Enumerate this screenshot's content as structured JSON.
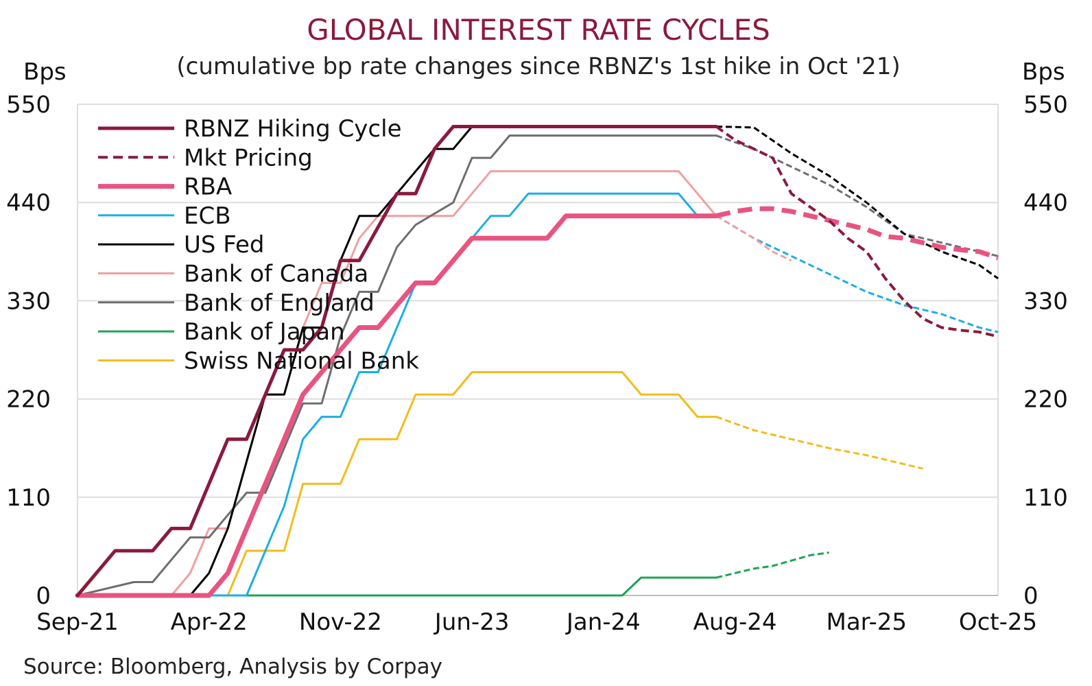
{
  "chart_data": {
    "type": "line",
    "title": "GLOBAL INTEREST RATE CYCLES",
    "subtitle": "(cumulative bp rate changes since RBNZ's 1st hike in Oct '21)",
    "ylabel_left": "Bps",
    "ylabel_right": "Bps",
    "source": "Source: Bloomberg, Analysis by Corpay",
    "ylim": [
      0,
      550
    ],
    "y_ticks": [
      "0",
      "110",
      "220",
      "330",
      "440",
      "550"
    ],
    "x_ticks": [
      "Sep-21",
      "Apr-22",
      "Nov-22",
      "Jun-23",
      "Jan-24",
      "Aug-24",
      "Mar-25",
      "Oct-25"
    ],
    "x_range": [
      "2021-09",
      "2025-10"
    ],
    "grid": "horizontal",
    "legend_position": "top-left",
    "series": [
      {
        "name": "RBNZ Hiking Cycle",
        "color": "#8b1a3d",
        "style": "solid",
        "width": 5,
        "points": [
          [
            "2021-09",
            0
          ],
          [
            "2021-10",
            25
          ],
          [
            "2021-11",
            50
          ],
          [
            "2022-01",
            50
          ],
          [
            "2022-02",
            75
          ],
          [
            "2022-03",
            75
          ],
          [
            "2022-04",
            125
          ],
          [
            "2022-05",
            175
          ],
          [
            "2022-06",
            175
          ],
          [
            "2022-07",
            225
          ],
          [
            "2022-08",
            275
          ],
          [
            "2022-09",
            275
          ],
          [
            "2022-10",
            300
          ],
          [
            "2022-11",
            375
          ],
          [
            "2022-12",
            375
          ],
          [
            "2023-02",
            450
          ],
          [
            "2023-03",
            450
          ],
          [
            "2023-04",
            500
          ],
          [
            "2023-05",
            525
          ],
          [
            "2024-07",
            525
          ]
        ]
      },
      {
        "name": "Mkt Pricing",
        "color": "#8b1a3d",
        "style": "dashed",
        "width": 4,
        "points": [
          [
            "2024-07",
            525
          ],
          [
            "2024-08",
            510
          ],
          [
            "2024-09",
            500
          ],
          [
            "2024-10",
            490
          ],
          [
            "2024-11",
            450
          ],
          [
            "2024-12",
            435
          ],
          [
            "2025-01",
            420
          ],
          [
            "2025-02",
            400
          ],
          [
            "2025-03",
            385
          ],
          [
            "2025-04",
            355
          ],
          [
            "2025-05",
            330
          ],
          [
            "2025-06",
            310
          ],
          [
            "2025-07",
            300
          ],
          [
            "2025-08",
            297
          ],
          [
            "2025-09",
            295
          ],
          [
            "2025-10",
            290
          ]
        ]
      },
      {
        "name": "RBA",
        "color": "#e85480",
        "style": "solid",
        "width": 7,
        "points": [
          [
            "2021-09",
            0
          ],
          [
            "2022-04",
            0
          ],
          [
            "2022-05",
            25
          ],
          [
            "2022-06",
            75
          ],
          [
            "2022-07",
            125
          ],
          [
            "2022-08",
            175
          ],
          [
            "2022-09",
            225
          ],
          [
            "2022-10",
            250
          ],
          [
            "2022-11",
            275
          ],
          [
            "2022-12",
            300
          ],
          [
            "2023-01",
            300
          ],
          [
            "2023-02",
            325
          ],
          [
            "2023-03",
            350
          ],
          [
            "2023-04",
            350
          ],
          [
            "2023-05",
            375
          ],
          [
            "2023-06",
            400
          ],
          [
            "2023-07",
            400
          ],
          [
            "2023-08",
            400
          ],
          [
            "2023-09",
            400
          ],
          [
            "2023-10",
            400
          ],
          [
            "2023-11",
            425
          ],
          [
            "2024-07",
            425
          ]
        ]
      },
      {
        "name": "RBA (pricing)",
        "color": "#e85480",
        "style": "dashed",
        "width": 7,
        "legend": false,
        "points": [
          [
            "2024-07",
            425
          ],
          [
            "2024-08",
            430
          ],
          [
            "2024-09",
            433
          ],
          [
            "2024-10",
            433
          ],
          [
            "2024-11",
            430
          ],
          [
            "2024-12",
            425
          ],
          [
            "2025-01",
            420
          ],
          [
            "2025-02",
            415
          ],
          [
            "2025-03",
            410
          ],
          [
            "2025-04",
            402
          ],
          [
            "2025-05",
            400
          ],
          [
            "2025-06",
            395
          ],
          [
            "2025-07",
            390
          ],
          [
            "2025-08",
            387
          ],
          [
            "2025-09",
            385
          ],
          [
            "2025-10",
            378
          ]
        ]
      },
      {
        "name": "ECB",
        "color": "#1caee4",
        "style": "solid",
        "width": 3,
        "points": [
          [
            "2021-09",
            0
          ],
          [
            "2022-06",
            0
          ],
          [
            "2022-07",
            50
          ],
          [
            "2022-08",
            100
          ],
          [
            "2022-09",
            175
          ],
          [
            "2022-10",
            200
          ],
          [
            "2022-11",
            200
          ],
          [
            "2022-12",
            250
          ],
          [
            "2023-01",
            250
          ],
          [
            "2023-02",
            300
          ],
          [
            "2023-03",
            350
          ],
          [
            "2023-04",
            350
          ],
          [
            "2023-05",
            375
          ],
          [
            "2023-06",
            400
          ],
          [
            "2023-07",
            425
          ],
          [
            "2023-08",
            425
          ],
          [
            "2023-09",
            450
          ],
          [
            "2024-05",
            450
          ],
          [
            "2024-06",
            425
          ],
          [
            "2024-07",
            425
          ]
        ]
      },
      {
        "name": "ECB (pricing)",
        "color": "#1caee4",
        "style": "dashed",
        "width": 3,
        "legend": false,
        "points": [
          [
            "2024-07",
            425
          ],
          [
            "2024-09",
            400
          ],
          [
            "2024-11",
            380
          ],
          [
            "2025-01",
            360
          ],
          [
            "2025-03",
            340
          ],
          [
            "2025-05",
            325
          ],
          [
            "2025-07",
            315
          ],
          [
            "2025-09",
            300
          ],
          [
            "2025-10",
            295
          ]
        ]
      },
      {
        "name": "US Fed",
        "color": "#000000",
        "style": "solid",
        "width": 3,
        "points": [
          [
            "2021-09",
            0
          ],
          [
            "2022-03",
            0
          ],
          [
            "2022-04",
            25
          ],
          [
            "2022-05",
            75
          ],
          [
            "2022-06",
            150
          ],
          [
            "2022-07",
            225
          ],
          [
            "2022-08",
            225
          ],
          [
            "2022-09",
            300
          ],
          [
            "2022-10",
            300
          ],
          [
            "2022-11",
            375
          ],
          [
            "2022-12",
            425
          ],
          [
            "2023-01",
            425
          ],
          [
            "2023-02",
            450
          ],
          [
            "2023-03",
            475
          ],
          [
            "2023-04",
            500
          ],
          [
            "2023-05",
            500
          ],
          [
            "2023-06",
            525
          ],
          [
            "2024-07",
            525
          ]
        ]
      },
      {
        "name": "US Fed (pricing)",
        "color": "#000000",
        "style": "dashed",
        "width": 3,
        "legend": false,
        "points": [
          [
            "2024-07",
            525
          ],
          [
            "2024-09",
            524
          ],
          [
            "2024-11",
            495
          ],
          [
            "2025-01",
            470
          ],
          [
            "2025-03",
            440
          ],
          [
            "2025-05",
            405
          ],
          [
            "2025-07",
            385
          ],
          [
            "2025-09",
            370
          ],
          [
            "2025-10",
            355
          ]
        ]
      },
      {
        "name": "Bank of Canada",
        "color": "#f0a0a0",
        "style": "solid",
        "width": 3,
        "points": [
          [
            "2021-09",
            0
          ],
          [
            "2022-02",
            0
          ],
          [
            "2022-03",
            25
          ],
          [
            "2022-04",
            75
          ],
          [
            "2022-05",
            75
          ],
          [
            "2022-06",
            150
          ],
          [
            "2022-07",
            225
          ],
          [
            "2022-08",
            225
          ],
          [
            "2022-09",
            300
          ],
          [
            "2022-10",
            350
          ],
          [
            "2022-11",
            350
          ],
          [
            "2022-12",
            400
          ],
          [
            "2023-01",
            425
          ],
          [
            "2023-05",
            425
          ],
          [
            "2023-06",
            450
          ],
          [
            "2023-07",
            475
          ],
          [
            "2024-05",
            475
          ],
          [
            "2024-06",
            450
          ],
          [
            "2024-07",
            425
          ]
        ]
      },
      {
        "name": "Bank of Canada (pricing)",
        "color": "#f0a0a0",
        "style": "dashed",
        "width": 3,
        "legend": false,
        "points": [
          [
            "2024-07",
            425
          ],
          [
            "2024-09",
            400
          ],
          [
            "2024-10",
            385
          ],
          [
            "2024-11",
            375
          ]
        ]
      },
      {
        "name": "Bank of England",
        "color": "#6e6e6e",
        "style": "solid",
        "width": 3,
        "points": [
          [
            "2021-09",
            0
          ],
          [
            "2021-12",
            15
          ],
          [
            "2022-01",
            15
          ],
          [
            "2022-02",
            40
          ],
          [
            "2022-03",
            65
          ],
          [
            "2022-04",
            65
          ],
          [
            "2022-05",
            90
          ],
          [
            "2022-06",
            115
          ],
          [
            "2022-07",
            115
          ],
          [
            "2022-08",
            165
          ],
          [
            "2022-09",
            215
          ],
          [
            "2022-10",
            215
          ],
          [
            "2022-11",
            290
          ],
          [
            "2022-12",
            340
          ],
          [
            "2023-01",
            340
          ],
          [
            "2023-02",
            390
          ],
          [
            "2023-03",
            415
          ],
          [
            "2023-05",
            440
          ],
          [
            "2023-06",
            490
          ],
          [
            "2023-07",
            490
          ],
          [
            "2023-08",
            515
          ],
          [
            "2024-07",
            515
          ]
        ]
      },
      {
        "name": "Bank of England (pricing)",
        "color": "#6e6e6e",
        "style": "dashed",
        "width": 3,
        "legend": false,
        "points": [
          [
            "2024-07",
            515
          ],
          [
            "2024-09",
            500
          ],
          [
            "2024-11",
            480
          ],
          [
            "2025-01",
            460
          ],
          [
            "2025-03",
            435
          ],
          [
            "2025-05",
            405
          ],
          [
            "2025-07",
            395
          ],
          [
            "2025-09",
            385
          ],
          [
            "2025-10",
            380
          ]
        ]
      },
      {
        "name": "Bank of Japan",
        "color": "#1fa353",
        "style": "solid",
        "width": 3,
        "points": [
          [
            "2021-09",
            0
          ],
          [
            "2024-02",
            0
          ],
          [
            "2024-03",
            20
          ],
          [
            "2024-07",
            20
          ]
        ]
      },
      {
        "name": "Bank of Japan (pricing)",
        "color": "#1fa353",
        "style": "dashed",
        "width": 3,
        "legend": false,
        "points": [
          [
            "2024-07",
            20
          ],
          [
            "2024-09",
            30
          ],
          [
            "2024-10",
            33
          ],
          [
            "2024-12",
            45
          ],
          [
            "2025-01",
            48
          ]
        ]
      },
      {
        "name": "Swiss National Bank",
        "color": "#f2bc1a",
        "style": "solid",
        "width": 3,
        "points": [
          [
            "2021-09",
            0
          ],
          [
            "2022-05",
            0
          ],
          [
            "2022-06",
            50
          ],
          [
            "2022-07",
            50
          ],
          [
            "2022-08",
            50
          ],
          [
            "2022-09",
            125
          ],
          [
            "2022-10",
            125
          ],
          [
            "2022-11",
            125
          ],
          [
            "2022-12",
            175
          ],
          [
            "2023-01",
            175
          ],
          [
            "2023-02",
            175
          ],
          [
            "2023-03",
            225
          ],
          [
            "2023-04",
            225
          ],
          [
            "2023-05",
            225
          ],
          [
            "2023-06",
            250
          ],
          [
            "2024-02",
            250
          ],
          [
            "2024-03",
            225
          ],
          [
            "2024-05",
            225
          ],
          [
            "2024-06",
            200
          ],
          [
            "2024-07",
            200
          ]
        ]
      },
      {
        "name": "Swiss National Bank (pricing)",
        "color": "#f2bc1a",
        "style": "dashed",
        "width": 3,
        "legend": false,
        "points": [
          [
            "2024-07",
            200
          ],
          [
            "2024-09",
            185
          ],
          [
            "2024-11",
            175
          ],
          [
            "2025-01",
            165
          ],
          [
            "2025-03",
            157
          ],
          [
            "2025-05",
            147
          ],
          [
            "2025-06",
            142
          ]
        ]
      }
    ]
  }
}
